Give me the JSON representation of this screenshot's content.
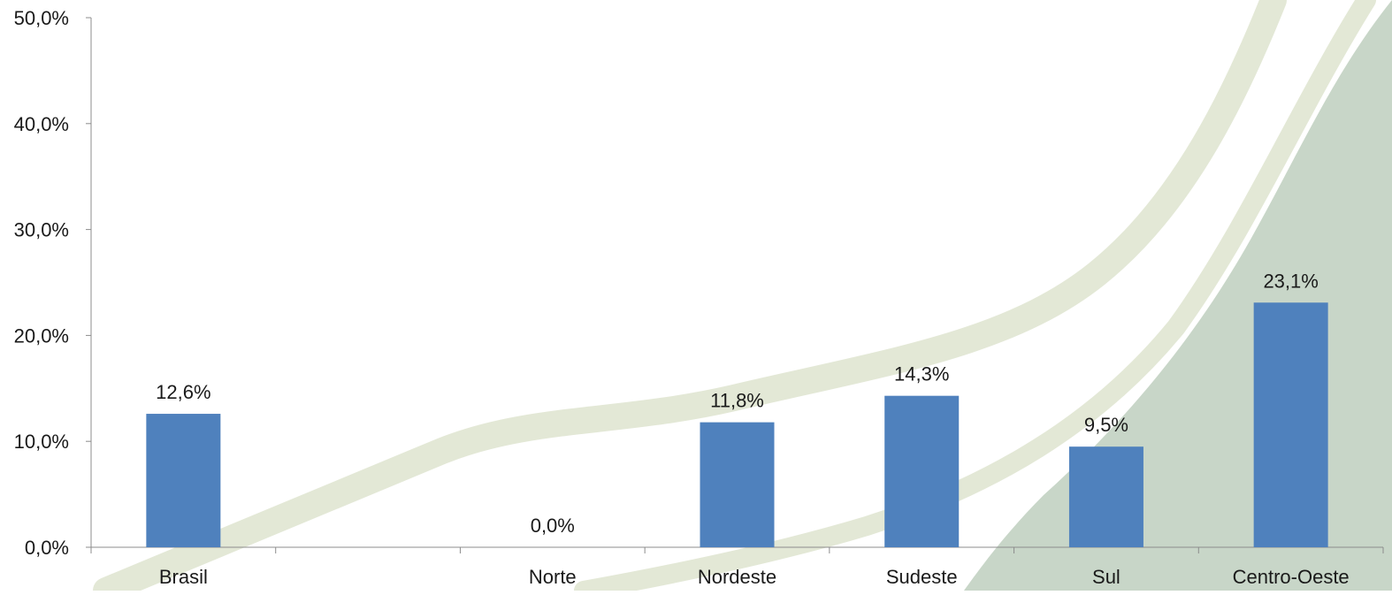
{
  "colors": {
    "bar": "#4f81bd",
    "axis": "#8c8c8c",
    "text": "#1a1a1a",
    "swoosh_light": "#e3e8d6",
    "swoosh_dark": "#c8d6c8"
  },
  "chart_data": {
    "type": "bar",
    "title": "",
    "xlabel": "",
    "ylabel": "",
    "ylim": [
      0,
      50
    ],
    "yticks": [
      0,
      10,
      20,
      30,
      40,
      50
    ],
    "ytick_labels": [
      "0,0%",
      "10,0%",
      "20,0%",
      "30,0%",
      "40,0%",
      "50,0%"
    ],
    "categories": [
      "Brasil",
      "",
      "Norte",
      "Nordeste",
      "Sudeste",
      "Sul",
      "Centro-Oeste"
    ],
    "values": [
      12.6,
      null,
      0.0,
      11.8,
      14.3,
      9.5,
      23.1
    ],
    "value_labels": [
      "12,6%",
      "",
      "0,0%",
      "11,8%",
      "14,3%",
      "9,5%",
      "23,1%"
    ],
    "grid": false,
    "legend": "none"
  }
}
